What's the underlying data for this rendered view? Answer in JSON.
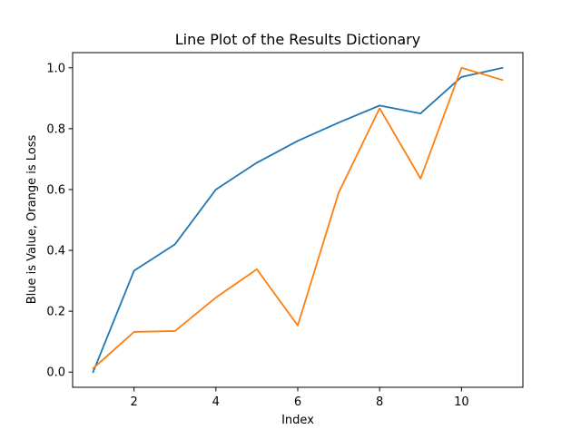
{
  "chart_data": {
    "type": "line",
    "title": "Line Plot of the Results Dictionary",
    "xlabel": "Index",
    "ylabel": "Blue is Value, Orange is Loss",
    "x": [
      1,
      2,
      3,
      4,
      5,
      6,
      7,
      8,
      9,
      10,
      11
    ],
    "series": [
      {
        "color": "#1f77b4",
        "values": [
          0.0,
          0.333,
          0.42,
          0.6,
          0.688,
          0.76,
          0.82,
          0.876,
          0.85,
          0.97,
          1.0
        ]
      },
      {
        "color": "#ff7f0e",
        "values": [
          0.012,
          0.132,
          0.135,
          0.245,
          0.338,
          0.153,
          0.59,
          0.867,
          0.636,
          1.0,
          0.96
        ]
      }
    ],
    "xlim": [
      0.5,
      11.5
    ],
    "ylim": [
      -0.05,
      1.05
    ],
    "xticks": [
      2,
      4,
      6,
      8,
      10
    ],
    "xtick_labels": [
      "2",
      "4",
      "6",
      "8",
      "10"
    ],
    "yticks": [
      0.0,
      0.2,
      0.4,
      0.6,
      0.8,
      1.0
    ],
    "ytick_labels": [
      "0.0",
      "0.2",
      "0.4",
      "0.6",
      "0.8",
      "1.0"
    ],
    "grid": false,
    "legend": "none"
  }
}
